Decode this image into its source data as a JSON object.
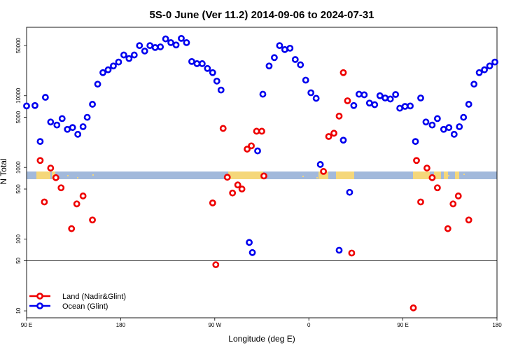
{
  "chart_data": {
    "type": "scatter",
    "title": "5S-0 June (Ver 11.2)   2014-09-06 to 2024-07-31",
    "xlabel": "Longitude (deg E)",
    "ylabel": "N Total",
    "y_scale": "log",
    "ylim": [
      8,
      90000
    ],
    "x_ticks": [
      {
        "value": 90,
        "label": "90 E"
      },
      {
        "value": 180,
        "label": "180"
      },
      {
        "value": 270,
        "label": "90 W"
      },
      {
        "value": 360,
        "label": "0"
      },
      {
        "value": 450,
        "label": "90 E"
      },
      {
        "value": 540,
        "label": "180"
      }
    ],
    "y_ticks": [
      10,
      50,
      100,
      500,
      1000,
      5000,
      10000,
      50000
    ],
    "threshold_line": 50,
    "legend": {
      "position": "bottom-left"
    },
    "colors": {
      "land": "#ee0000",
      "ocean": "#0000ee",
      "band": "#a2b9db",
      "landmass": "#f5d77a"
    },
    "series": [
      {
        "name": "Land (Nadir&Glint)",
        "color": "#ee0000",
        "points": [
          {
            "x": 103,
            "y": 1250
          },
          {
            "x": 107,
            "y": 330
          },
          {
            "x": 113,
            "y": 980
          },
          {
            "x": 118,
            "y": 720
          },
          {
            "x": 123,
            "y": 520
          },
          {
            "x": 133,
            "y": 140
          },
          {
            "x": 138,
            "y": 310
          },
          {
            "x": 144,
            "y": 400
          },
          {
            "x": 153,
            "y": 185
          },
          {
            "x": 268,
            "y": 320
          },
          {
            "x": 271,
            "y": 44
          },
          {
            "x": 278,
            "y": 3500
          },
          {
            "x": 282,
            "y": 730
          },
          {
            "x": 287,
            "y": 440
          },
          {
            "x": 292,
            "y": 570
          },
          {
            "x": 296,
            "y": 500
          },
          {
            "x": 301,
            "y": 1800
          },
          {
            "x": 305,
            "y": 2000
          },
          {
            "x": 310,
            "y": 3200
          },
          {
            "x": 315,
            "y": 3200
          },
          {
            "x": 317,
            "y": 760
          },
          {
            "x": 374,
            "y": 880
          },
          {
            "x": 379,
            "y": 2700
          },
          {
            "x": 384,
            "y": 3000
          },
          {
            "x": 389,
            "y": 5200
          },
          {
            "x": 393,
            "y": 21000
          },
          {
            "x": 397,
            "y": 8500
          },
          {
            "x": 401,
            "y": 64
          },
          {
            "x": 460,
            "y": 11
          },
          {
            "x": 463,
            "y": 1250
          },
          {
            "x": 467,
            "y": 330
          },
          {
            "x": 473,
            "y": 980
          },
          {
            "x": 478,
            "y": 720
          },
          {
            "x": 483,
            "y": 520
          },
          {
            "x": 493,
            "y": 140
          },
          {
            "x": 498,
            "y": 310
          },
          {
            "x": 503,
            "y": 400
          },
          {
            "x": 513,
            "y": 185
          }
        ]
      },
      {
        "name": "Ocean (Glint)",
        "color": "#0000ee",
        "points": [
          {
            "x": 90,
            "y": 7200
          },
          {
            "x": 98,
            "y": 7300
          },
          {
            "x": 103,
            "y": 2300
          },
          {
            "x": 108,
            "y": 9500
          },
          {
            "x": 113,
            "y": 4300
          },
          {
            "x": 119,
            "y": 3900
          },
          {
            "x": 124,
            "y": 4800
          },
          {
            "x": 129,
            "y": 3400
          },
          {
            "x": 134,
            "y": 3600
          },
          {
            "x": 139,
            "y": 2900
          },
          {
            "x": 144,
            "y": 3700
          },
          {
            "x": 148,
            "y": 5000
          },
          {
            "x": 153,
            "y": 7600
          },
          {
            "x": 158,
            "y": 14500
          },
          {
            "x": 163,
            "y": 21000
          },
          {
            "x": 168,
            "y": 23000
          },
          {
            "x": 173,
            "y": 26000
          },
          {
            "x": 178,
            "y": 29500
          },
          {
            "x": 183,
            "y": 37000
          },
          {
            "x": 188,
            "y": 33000
          },
          {
            "x": 193,
            "y": 37000
          },
          {
            "x": 198,
            "y": 50000
          },
          {
            "x": 203,
            "y": 42000
          },
          {
            "x": 208,
            "y": 50000
          },
          {
            "x": 213,
            "y": 47000
          },
          {
            "x": 218,
            "y": 48000
          },
          {
            "x": 223,
            "y": 62000
          },
          {
            "x": 228,
            "y": 55000
          },
          {
            "x": 233,
            "y": 51000
          },
          {
            "x": 238,
            "y": 63000
          },
          {
            "x": 243,
            "y": 55000
          },
          {
            "x": 248,
            "y": 30000
          },
          {
            "x": 253,
            "y": 28000
          },
          {
            "x": 258,
            "y": 28000
          },
          {
            "x": 263,
            "y": 24000
          },
          {
            "x": 268,
            "y": 21000
          },
          {
            "x": 272,
            "y": 16000
          },
          {
            "x": 276,
            "y": 12000
          },
          {
            "x": 303,
            "y": 90
          },
          {
            "x": 306,
            "y": 65
          },
          {
            "x": 311,
            "y": 1700
          },
          {
            "x": 316,
            "y": 10500
          },
          {
            "x": 322,
            "y": 26000
          },
          {
            "x": 327,
            "y": 34000
          },
          {
            "x": 332,
            "y": 50000
          },
          {
            "x": 337,
            "y": 44000
          },
          {
            "x": 342,
            "y": 46000
          },
          {
            "x": 347,
            "y": 32000
          },
          {
            "x": 352,
            "y": 27000
          },
          {
            "x": 357,
            "y": 16500
          },
          {
            "x": 362,
            "y": 11000
          },
          {
            "x": 367,
            "y": 9200
          },
          {
            "x": 371,
            "y": 1100
          },
          {
            "x": 389,
            "y": 70
          },
          {
            "x": 393,
            "y": 2400
          },
          {
            "x": 399,
            "y": 450
          },
          {
            "x": 403,
            "y": 7300
          },
          {
            "x": 408,
            "y": 10500
          },
          {
            "x": 413,
            "y": 10300
          },
          {
            "x": 418,
            "y": 7900
          },
          {
            "x": 423,
            "y": 7500
          },
          {
            "x": 428,
            "y": 10000
          },
          {
            "x": 433,
            "y": 9300
          },
          {
            "x": 438,
            "y": 9000
          },
          {
            "x": 443,
            "y": 10400
          },
          {
            "x": 447,
            "y": 6700
          },
          {
            "x": 452,
            "y": 7100
          },
          {
            "x": 457,
            "y": 7200
          },
          {
            "x": 462,
            "y": 2300
          },
          {
            "x": 467,
            "y": 9300
          },
          {
            "x": 472,
            "y": 4300
          },
          {
            "x": 478,
            "y": 3900
          },
          {
            "x": 483,
            "y": 4800
          },
          {
            "x": 489,
            "y": 3400
          },
          {
            "x": 494,
            "y": 3600
          },
          {
            "x": 499,
            "y": 2900
          },
          {
            "x": 504,
            "y": 3700
          },
          {
            "x": 508,
            "y": 5000
          },
          {
            "x": 513,
            "y": 7600
          },
          {
            "x": 518,
            "y": 14500
          },
          {
            "x": 523,
            "y": 21000
          },
          {
            "x": 528,
            "y": 23000
          },
          {
            "x": 533,
            "y": 26000
          },
          {
            "x": 538,
            "y": 29500
          }
        ]
      }
    ]
  }
}
